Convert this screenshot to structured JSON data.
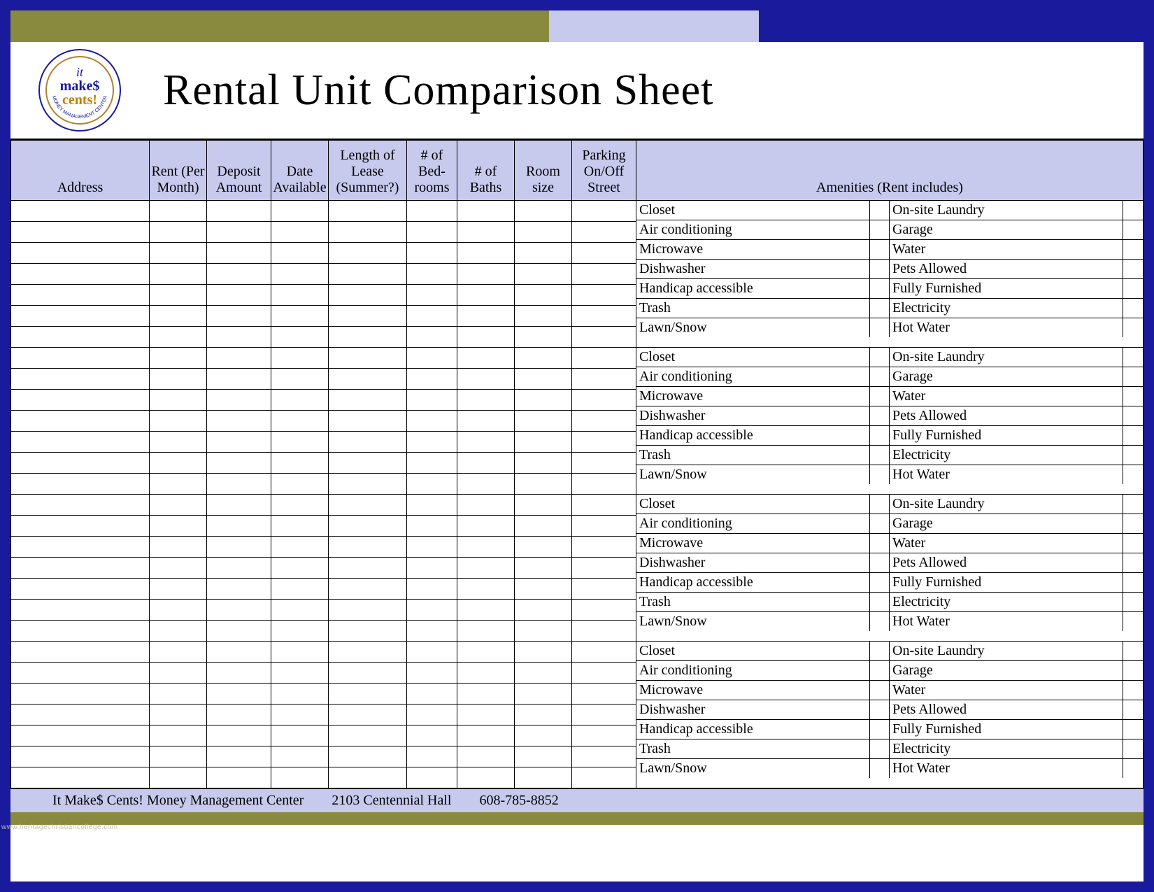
{
  "title": "Rental Unit Comparison Sheet",
  "logo": {
    "line1": "it",
    "line2": "make$",
    "line3": "cents!",
    "ring_text": "MONEY MANAGEMENT CENTER"
  },
  "columns": [
    "Address",
    "Rent (Per Month)",
    "Deposit Amount",
    "Date Available",
    "Length of Lease (Summer?)",
    "# of Bed-rooms",
    "# of Baths",
    "Room size",
    "Parking On/Off Street",
    "Amenities (Rent includes)"
  ],
  "amenities_col1": [
    "Closet",
    "Air conditioning",
    "Microwave",
    "Dishwasher",
    "Handicap accessible",
    "Trash",
    "Lawn/Snow"
  ],
  "amenities_col2": [
    "On-site Laundry",
    "Garage",
    "Water",
    "Pets Allowed",
    "Fully Furnished",
    "Electricity",
    "Hot Water"
  ],
  "row_count": 4,
  "footer": {
    "org": "It Make$ Cents! Money Management Center",
    "addr": "2103 Centennial Hall",
    "phone": "608-785-8852"
  },
  "watermark": "www.heritagechristiancollege.com",
  "colors": {
    "navy": "#1a1a9c",
    "olive": "#8a8a3f",
    "lilac": "#c7caed",
    "white": "#ffffff",
    "black": "#000000"
  }
}
